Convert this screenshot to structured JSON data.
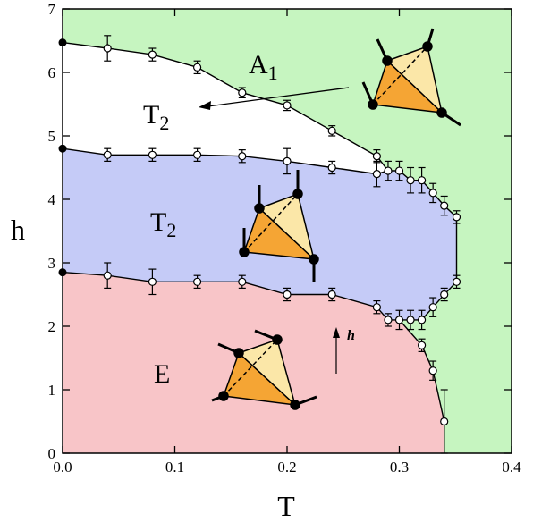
{
  "chart_data": {
    "type": "phase",
    "xlabel": "T",
    "ylabel": "h",
    "xlim": [
      0,
      0.4
    ],
    "ylim": [
      0,
      7
    ],
    "xticks": [
      {
        "value": 0,
        "label": "0.0"
      },
      0.1,
      0.2,
      0.3,
      0.4
    ],
    "yticks": [
      0,
      1,
      2,
      3,
      4,
      5,
      6,
      7
    ],
    "colors": {
      "background": "#c6f5c0",
      "white": "#ffffff",
      "blue": "#c5cbf7",
      "pink": "#f8c5c8"
    },
    "exact_points": {
      "x": [
        0,
        0,
        0
      ],
      "values": [
        6.47,
        4.8,
        2.85
      ]
    },
    "series": [
      {
        "x": [
          0.04,
          0.08,
          0.12,
          0.16,
          0.2,
          0.24,
          0.28
        ],
        "values": [
          6.38,
          6.28,
          6.08,
          5.68,
          5.48,
          5.08,
          4.68
        ],
        "errors": [
          0.2,
          0.1,
          0.1,
          0.08,
          0.08,
          0.08,
          0.1
        ]
      },
      {
        "x": [
          0.04,
          0.08,
          0.12,
          0.16,
          0.2,
          0.24,
          0.28,
          0.29,
          0.3,
          0.31,
          0.32,
          0.33,
          0.34,
          0.351,
          0.351,
          0.34,
          0.33,
          0.32,
          0.31,
          0.3,
          0.29,
          0.28,
          0.24,
          0.2,
          0.16,
          0.12,
          0.08,
          0.04
        ],
        "values": [
          4.7,
          4.7,
          4.7,
          4.68,
          4.6,
          4.5,
          4.4,
          4.45,
          4.45,
          4.3,
          4.3,
          4.1,
          3.9,
          3.72,
          2.7,
          2.5,
          2.3,
          2.1,
          2.1,
          2.1,
          2.1,
          2.3,
          2.5,
          2.5,
          2.7,
          2.7,
          2.7,
          2.8
        ],
        "errors": [
          0.1,
          0.1,
          0.1,
          0.1,
          0.2,
          0.1,
          0.2,
          0.15,
          0.15,
          0.2,
          0.2,
          0.15,
          0.15,
          0.1,
          0.1,
          0.1,
          0.15,
          0.15,
          0.15,
          0.15,
          0.1,
          0.1,
          0.1,
          0.1,
          0.1,
          0.1,
          0.2,
          0.2
        ]
      },
      {
        "x": [
          0.32,
          0.33,
          0.34
        ],
        "values": [
          1.7,
          1.3,
          0.5
        ],
        "errors": [
          0.1,
          0.15,
          0.5
        ]
      }
    ],
    "regions": [
      {
        "label": "A",
        "sub": "1"
      },
      {
        "label": "T",
        "sub": "2"
      },
      {
        "label": "T",
        "sub": "2"
      },
      {
        "label": "E"
      }
    ],
    "annotation": "h"
  }
}
